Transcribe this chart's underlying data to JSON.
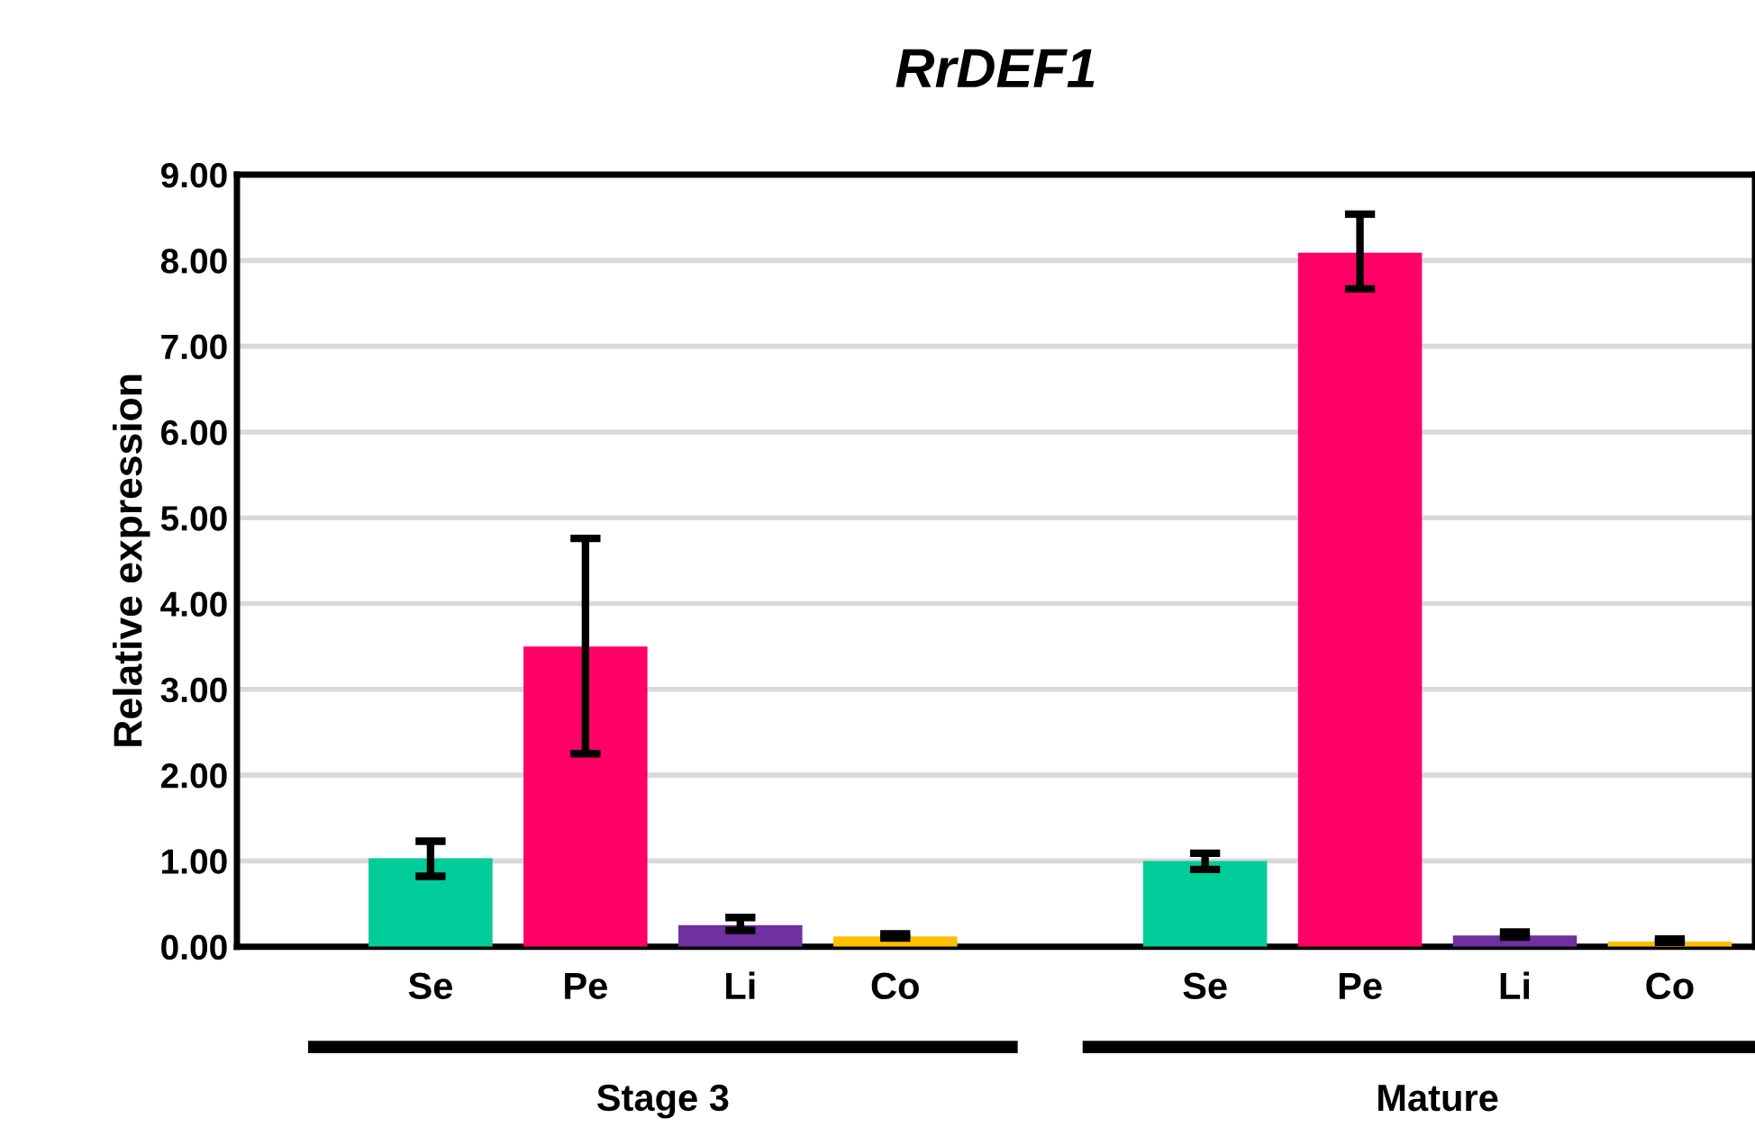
{
  "chart_data": {
    "type": "bar",
    "title": "RrDEF1",
    "ylabel": "Relative expression",
    "categories": [
      "Se",
      "Pe",
      "Li",
      "Co",
      null,
      "Se",
      "Pe",
      "Li",
      "Co"
    ],
    "values": [
      1.03,
      3.5,
      0.25,
      0.12,
      null,
      1.0,
      8.09,
      0.13,
      0.06
    ],
    "colors": [
      "#00cc99",
      "#ff0066",
      "#7030a0",
      "#ffc000",
      null,
      "#00cc99",
      "#ff0066",
      "#7030a0",
      "#ffc000"
    ],
    "errors": [
      [
        0.82,
        1.23
      ],
      [
        2.25,
        4.76
      ],
      [
        0.19,
        0.34
      ],
      [
        0.1,
        0.15
      ],
      null,
      [
        0.9,
        1.09
      ],
      [
        7.67,
        8.54
      ],
      [
        0.11,
        0.17
      ],
      [
        0.05,
        0.09
      ]
    ],
    "ylim": [
      0,
      9
    ],
    "yticks": [
      {
        "value": 0,
        "label": "0.00"
      },
      {
        "value": 1,
        "label": "1.00"
      },
      {
        "value": 2,
        "label": "2.00"
      },
      {
        "value": 3,
        "label": "3.00"
      },
      {
        "value": 4,
        "label": "4.00"
      },
      {
        "value": 5,
        "label": "5.00"
      },
      {
        "value": 6,
        "label": "6.00"
      },
      {
        "value": 7,
        "label": "7.00"
      },
      {
        "value": 8,
        "label": "8.00"
      },
      {
        "value": 9,
        "label": "9.00"
      }
    ],
    "grid": "y",
    "legend": false,
    "annotations": [
      "Stage 3",
      "Mature"
    ]
  }
}
